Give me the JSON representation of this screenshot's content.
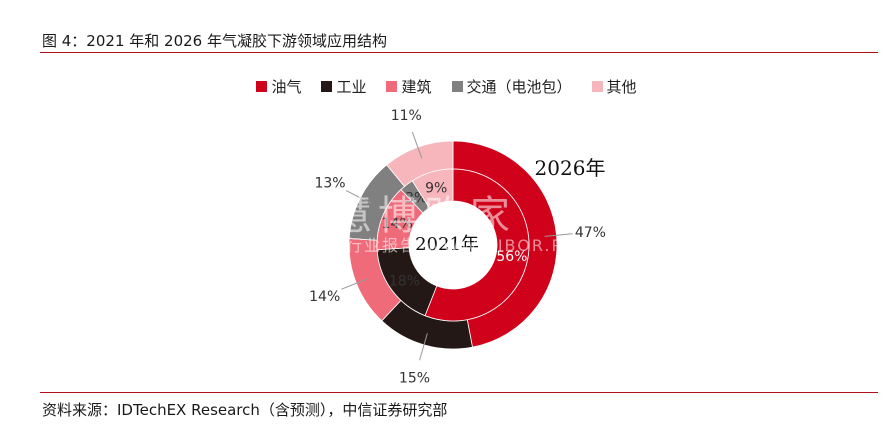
{
  "header": {
    "title": "图 4：2021 年和 2026 年气凝胶下游领域应用结构"
  },
  "footer": {
    "source": "资料来源：IDTechEX Research（含预测），中信证券研究部"
  },
  "watermark": {
    "main": "慧博购家",
    "sub": "行业报告 WWW.HIBOR.PO.CN"
  },
  "chart_data": {
    "type": "donut",
    "categories": [
      "油气",
      "工业",
      "建筑",
      "交通（电池包）",
      "其他"
    ],
    "colors": [
      "#d0021b",
      "#231815",
      "#f06b7a",
      "#808080",
      "#f7b6bc"
    ],
    "rings": [
      {
        "name": "2026年",
        "ring": "outer",
        "values": [
          47,
          15,
          14,
          13,
          11
        ],
        "labels": [
          "47%",
          "15%",
          "14%",
          "13%",
          "11%"
        ]
      },
      {
        "name": "2021年",
        "ring": "inner",
        "values": [
          56,
          18,
          14,
          3,
          9
        ],
        "labels": [
          "56%",
          "18%",
          "14%",
          "3%",
          "9%"
        ]
      }
    ]
  }
}
